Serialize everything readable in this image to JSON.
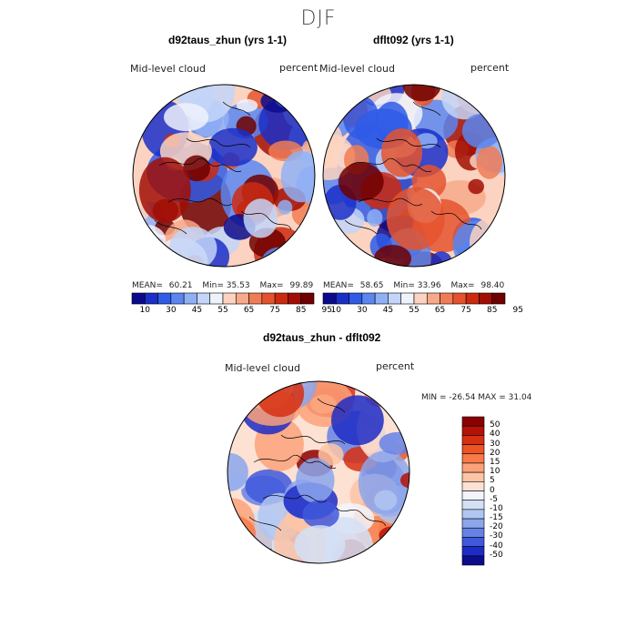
{
  "figure": {
    "main_title": "DJF"
  },
  "panels": [
    {
      "title": "d92taus_zhun (yrs 1-1)",
      "variable": "Mid-level cloud",
      "units": "percent",
      "stats": {
        "mean_label": "MEAN=",
        "mean": "60.21",
        "min_label": "Min=",
        "min": "35.53",
        "max_label": "Max=",
        "max": "99.89"
      }
    },
    {
      "title": "dflt092 (yrs 1-1)",
      "variable": "Mid-level cloud",
      "units": "percent",
      "stats": {
        "mean_label": "MEAN=",
        "mean": "58.65",
        "min_label": "Min=",
        "min": "33.96",
        "max_label": "Max=",
        "max": "98.40"
      }
    },
    {
      "title": "d92taus_zhun - dflt092",
      "variable": "Mid-level cloud",
      "units": "percent",
      "minmax_text": "MIN = -26.54 MAX =  31.04"
    }
  ],
  "colorbars": {
    "absolute": {
      "labels": [
        "10",
        "30",
        "45",
        "55",
        "65",
        "75",
        "85",
        "95"
      ],
      "colors": [
        "#0a0a8c",
        "#1a2fc8",
        "#2f5be6",
        "#5b86f0",
        "#8fb0f4",
        "#c3d5f8",
        "#eef2fb",
        "#fbd3c0",
        "#f7a98a",
        "#f07c56",
        "#e4532e",
        "#cc2a10",
        "#a10e05",
        "#6e0000"
      ]
    },
    "difference": {
      "labels": [
        "50",
        "40",
        "30",
        "20",
        "15",
        "10",
        "5",
        "0",
        "-5",
        "-10",
        "-15",
        "-20",
        "-30",
        "-40",
        "-50"
      ],
      "colors": [
        "#8b0000",
        "#b41206",
        "#d62f12",
        "#ee5325",
        "#f77a48",
        "#fca27a",
        "#fdc4a6",
        "#fde2d4",
        "#f2f4fb",
        "#d3e0f6",
        "#b0c6f1",
        "#8ca6ec",
        "#6682e6",
        "#3f58dc",
        "#1d2cc6",
        "#0c0c8c"
      ]
    }
  },
  "chart_data": [
    {
      "type": "heatmap",
      "title": "d92taus_zhun (yrs 1-1)",
      "projection": "north polar stereographic",
      "variable": "Mid-level cloud",
      "units": "percent",
      "mean": 60.21,
      "min": 35.53,
      "max": 99.89,
      "colorbar_levels": [
        10,
        30,
        45,
        55,
        65,
        75,
        85,
        95
      ]
    },
    {
      "type": "heatmap",
      "title": "dflt092 (yrs 1-1)",
      "projection": "north polar stereographic",
      "variable": "Mid-level cloud",
      "units": "percent",
      "mean": 58.65,
      "min": 33.96,
      "max": 98.4,
      "colorbar_levels": [
        10,
        30,
        45,
        55,
        65,
        75,
        85,
        95
      ]
    },
    {
      "type": "heatmap",
      "title": "d92taus_zhun - dflt092",
      "projection": "north polar stereographic",
      "variable": "Mid-level cloud",
      "units": "percent",
      "min": -26.54,
      "max": 31.04,
      "colorbar_levels": [
        50,
        40,
        30,
        20,
        15,
        10,
        5,
        0,
        -5,
        -10,
        -15,
        -20,
        -30,
        -40,
        -50
      ]
    }
  ]
}
